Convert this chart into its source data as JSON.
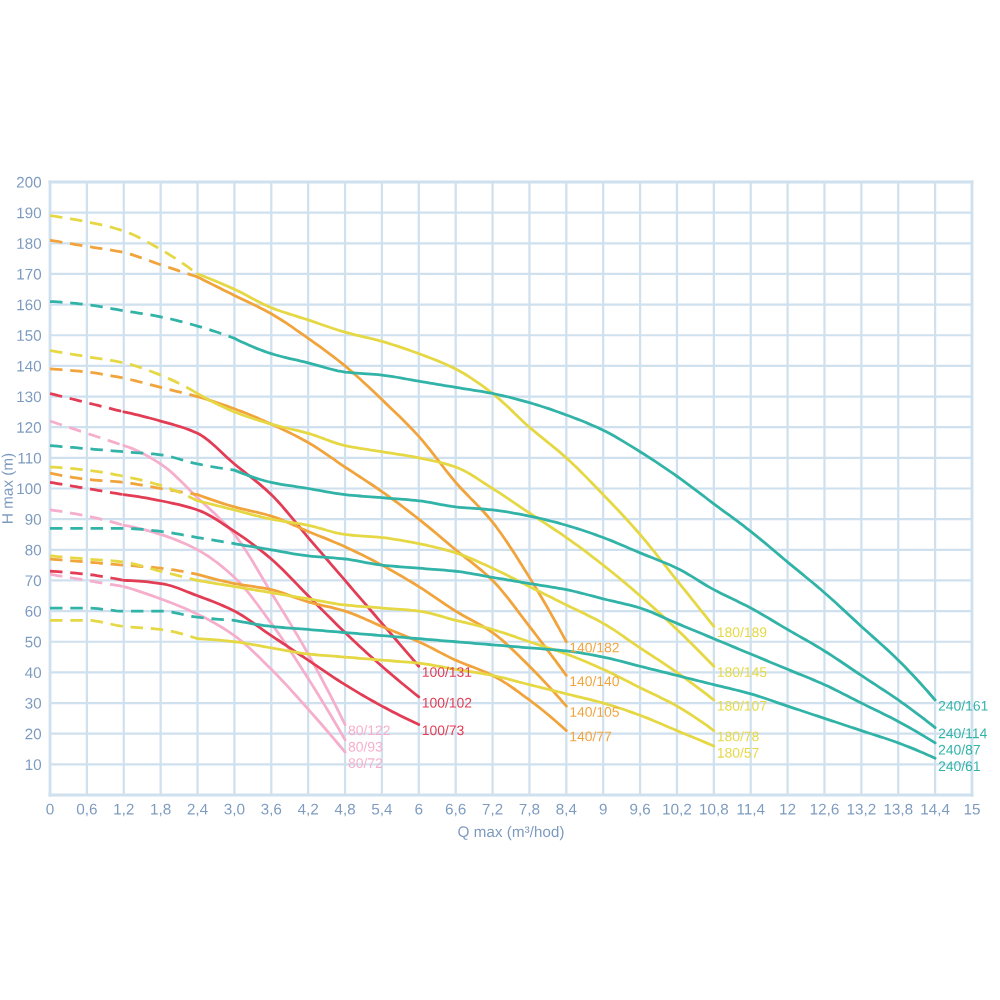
{
  "chart_data": {
    "type": "line",
    "xlabel": "Q max (m³/hod)",
    "ylabel": "H max (m)",
    "xlim": [
      0,
      15
    ],
    "ylim": [
      0,
      200
    ],
    "xticks": [
      0,
      {
        "value": 0.6,
        "label": "0,6"
      },
      {
        "value": 1.2,
        "label": "1,2"
      },
      {
        "value": 1.8,
        "label": "1,8"
      },
      {
        "value": 2.4,
        "label": "2,4"
      },
      {
        "value": 3,
        "label": "3,0"
      },
      {
        "value": 3.6,
        "label": "3,6"
      },
      {
        "value": 4.2,
        "label": "4,2"
      },
      {
        "value": 4.8,
        "label": "4,8"
      },
      {
        "value": 5.4,
        "label": "5,4"
      },
      6,
      {
        "value": 6.6,
        "label": "6,6"
      },
      {
        "value": 7.2,
        "label": "7,2"
      },
      {
        "value": 7.8,
        "label": "7,8"
      },
      {
        "value": 8.4,
        "label": "8,4"
      },
      9,
      {
        "value": 9.6,
        "label": "9,6"
      },
      {
        "value": 10.2,
        "label": "10,2"
      },
      {
        "value": 10.8,
        "label": "10,8"
      },
      {
        "value": 11.4,
        "label": "11,4"
      },
      12,
      {
        "value": 12.6,
        "label": "12,6"
      },
      {
        "value": 13.2,
        "label": "13,2"
      },
      {
        "value": 13.8,
        "label": "13,8"
      },
      {
        "value": 14.4,
        "label": "14,4"
      },
      15
    ],
    "yticks": [
      10,
      20,
      30,
      40,
      50,
      60,
      70,
      80,
      90,
      100,
      110,
      120,
      130,
      140,
      150,
      160,
      170,
      180,
      190,
      200
    ],
    "grid": true,
    "series": [
      {
        "color": "#f5aecb",
        "line_style": "dashed",
        "x": [
          0,
          0.6,
          1.2
        ],
        "values": [
          122,
          118,
          114
        ]
      },
      {
        "name": "80/122",
        "color": "#f5aecb",
        "x": [
          1.2,
          1.8,
          2.4,
          3.0,
          3.6,
          4.2,
          4.8
        ],
        "values": [
          114,
          108,
          97,
          85,
          66,
          46,
          23
        ]
      },
      {
        "color": "#f5aecb",
        "line_style": "dashed",
        "x": [
          0,
          0.6,
          1.2
        ],
        "values": [
          93,
          91,
          88
        ]
      },
      {
        "name": "80/93",
        "color": "#f5aecb",
        "x": [
          1.2,
          1.8,
          2.4,
          3.0,
          3.6,
          4.2,
          4.8
        ],
        "values": [
          88,
          85,
          80,
          71,
          56,
          38,
          18
        ]
      },
      {
        "color": "#f5aecb",
        "line_style": "dashed",
        "x": [
          0,
          0.6,
          1.2
        ],
        "values": [
          72,
          70,
          68
        ]
      },
      {
        "name": "80/72",
        "color": "#f5aecb",
        "x": [
          1.2,
          1.8,
          2.4,
          3.0,
          3.6,
          4.2,
          4.8
        ],
        "values": [
          68,
          64,
          59,
          52,
          41,
          28,
          14
        ]
      },
      {
        "color": "#e23d55",
        "line_style": "dashed",
        "x": [
          0,
          0.6,
          1.2
        ],
        "values": [
          131,
          128,
          125
        ]
      },
      {
        "name": "100/131",
        "color": "#e23d55",
        "x": [
          1.2,
          1.8,
          2.4,
          3.0,
          3.6,
          4.2,
          4.8,
          5.4,
          6.0
        ],
        "values": [
          125,
          122,
          118,
          108,
          98,
          84,
          70,
          56,
          42
        ]
      },
      {
        "color": "#e23d55",
        "line_style": "dashed",
        "x": [
          0,
          0.6,
          1.2
        ],
        "values": [
          102,
          100,
          98
        ]
      },
      {
        "name": "100/102",
        "color": "#e23d55",
        "x": [
          1.2,
          1.8,
          2.4,
          3.0,
          3.6,
          4.2,
          4.8,
          5.4,
          6.0
        ],
        "values": [
          98,
          96,
          93,
          86,
          77,
          65,
          53,
          42,
          32
        ]
      },
      {
        "color": "#e23d55",
        "line_style": "dashed",
        "x": [
          0,
          0.6,
          1.2
        ],
        "values": [
          73,
          72,
          70
        ]
      },
      {
        "name": "100/73",
        "color": "#e23d55",
        "x": [
          1.2,
          1.8,
          2.4,
          3.0,
          3.6,
          4.2,
          4.8,
          5.4,
          6.0
        ],
        "values": [
          70,
          69,
          65,
          60,
          52,
          44,
          36,
          29,
          23
        ]
      },
      {
        "color": "#f2a43c",
        "line_style": "dashed",
        "x": [
          0,
          0.6,
          1.2,
          1.8,
          2.4
        ],
        "values": [
          181,
          179,
          177,
          173,
          169
        ]
      },
      {
        "name": "140/182",
        "color": "#f2a43c",
        "x": [
          2.4,
          3.0,
          3.6,
          4.2,
          4.8,
          5.4,
          6.0,
          6.6,
          7.2,
          7.8,
          8.4
        ],
        "values": [
          169,
          163,
          157,
          149,
          140,
          129,
          117,
          102,
          89,
          71,
          50
        ]
      },
      {
        "color": "#f2a43c",
        "line_style": "dashed",
        "x": [
          0,
          0.6,
          1.2,
          1.8,
          2.4
        ],
        "values": [
          139,
          138,
          136,
          133,
          130
        ]
      },
      {
        "name": "140/140",
        "color": "#f2a43c",
        "x": [
          2.4,
          3.0,
          3.6,
          4.2,
          4.8,
          5.4,
          6.0,
          6.6,
          7.2,
          7.8,
          8.4
        ],
        "values": [
          130,
          126,
          121,
          115,
          107,
          99,
          90,
          80,
          70,
          55,
          39
        ]
      },
      {
        "color": "#f2a43c",
        "line_style": "dashed",
        "x": [
          0,
          0.6,
          1.2,
          1.8,
          2.4
        ],
        "values": [
          105,
          103,
          102,
          100,
          98
        ]
      },
      {
        "name": "140/105",
        "color": "#f2a43c",
        "x": [
          2.4,
          3.0,
          3.6,
          4.2,
          4.8,
          5.4,
          6.0,
          6.6,
          7.2,
          7.8,
          8.4
        ],
        "values": [
          98,
          94,
          91,
          86,
          81,
          75,
          68,
          60,
          53,
          42,
          29
        ]
      },
      {
        "color": "#f2a43c",
        "line_style": "dashed",
        "x": [
          0,
          0.6,
          1.2,
          1.8,
          2.4
        ],
        "values": [
          77,
          76,
          75,
          74,
          72
        ]
      },
      {
        "name": "140/77",
        "color": "#f2a43c",
        "x": [
          2.4,
          3.0,
          3.6,
          4.2,
          4.8,
          5.4,
          6.0,
          6.6,
          7.2,
          7.8,
          8.4
        ],
        "values": [
          72,
          69,
          67,
          63,
          60,
          55,
          50,
          44,
          39,
          31,
          21
        ]
      },
      {
        "color": "#e6d844",
        "line_style": "dashed",
        "x": [
          0,
          0.6,
          1.2,
          1.8,
          2.4
        ],
        "values": [
          189,
          187,
          184,
          178,
          170
        ]
      },
      {
        "name": "180/189",
        "color": "#e6d844",
        "x": [
          2.4,
          3.0,
          3.6,
          4.2,
          4.8,
          5.4,
          6.0,
          6.6,
          7.2,
          7.8,
          8.4,
          9.0,
          9.6,
          10.2,
          10.8
        ],
        "values": [
          170,
          165,
          159,
          155,
          151,
          148,
          144,
          139,
          131,
          120,
          110,
          98,
          85,
          70,
          55
        ]
      },
      {
        "color": "#e6d844",
        "line_style": "dashed",
        "x": [
          0,
          0.6,
          1.2,
          1.8,
          2.4
        ],
        "values": [
          145,
          143,
          141,
          137,
          131
        ]
      },
      {
        "name": "180/145",
        "color": "#e6d844",
        "x": [
          2.4,
          3.0,
          3.6,
          4.2,
          4.8,
          5.4,
          6.0,
          6.6,
          7.2,
          7.8,
          8.4,
          9.0,
          9.6,
          10.2,
          10.8
        ],
        "values": [
          131,
          125,
          121,
          118,
          114,
          112,
          110,
          107,
          100,
          92,
          84,
          75,
          65,
          54,
          42
        ]
      },
      {
        "color": "#e6d844",
        "line_style": "dashed",
        "x": [
          0,
          0.6,
          1.2,
          1.8,
          2.4
        ],
        "values": [
          107,
          106,
          104,
          101,
          96
        ]
      },
      {
        "name": "180/107",
        "color": "#e6d844",
        "x": [
          2.4,
          3.0,
          3.6,
          4.2,
          4.8,
          5.4,
          6.0,
          6.6,
          7.2,
          7.8,
          8.4,
          9.0,
          9.6,
          10.2,
          10.8
        ],
        "values": [
          96,
          93,
          90,
          88,
          85,
          84,
          82,
          79,
          74,
          68,
          62,
          56,
          48,
          40,
          31
        ]
      },
      {
        "color": "#e6d844",
        "line_style": "dashed",
        "x": [
          0,
          0.6,
          1.2,
          1.8,
          2.4
        ],
        "values": [
          78,
          77,
          76,
          73,
          70
        ]
      },
      {
        "name": "180/78",
        "color": "#e6d844",
        "x": [
          2.4,
          3.0,
          3.6,
          4.2,
          4.8,
          5.4,
          6.0,
          6.6,
          7.2,
          7.8,
          8.4,
          9.0,
          9.6,
          10.2,
          10.8
        ],
        "values": [
          70,
          68,
          66,
          64,
          62,
          61,
          60,
          57,
          54,
          50,
          46,
          41,
          35,
          29,
          21
        ]
      },
      {
        "color": "#e6d844",
        "line_style": "dashed",
        "x": [
          0,
          0.6,
          1.2,
          1.8,
          2.4
        ],
        "values": [
          57,
          57,
          55,
          54,
          51
        ]
      },
      {
        "name": "180/57",
        "color": "#e6d844",
        "x": [
          2.4,
          3.0,
          3.6,
          4.2,
          4.8,
          5.4,
          6.0,
          6.6,
          7.2,
          7.8,
          8.4,
          9.0,
          9.6,
          10.2,
          10.8
        ],
        "values": [
          51,
          50,
          48,
          46,
          45,
          44,
          43,
          41,
          39,
          36,
          33,
          30,
          26,
          21,
          16
        ]
      },
      {
        "color": "#31b3a8",
        "line_style": "dashed",
        "x": [
          0,
          0.6,
          1.2,
          1.8,
          2.4,
          3.0
        ],
        "values": [
          161,
          160,
          158,
          156,
          153,
          149
        ]
      },
      {
        "name": "240/161",
        "color": "#31b3a8",
        "x": [
          3.0,
          3.6,
          4.2,
          4.8,
          5.4,
          6.0,
          6.6,
          7.2,
          7.8,
          8.4,
          9.0,
          9.6,
          10.2,
          10.8,
          11.4,
          12.0,
          12.6,
          13.2,
          13.8,
          14.4
        ],
        "values": [
          149,
          144,
          141,
          138,
          137,
          135,
          133,
          131,
          128,
          124,
          119,
          112,
          104,
          95,
          86,
          76,
          66,
          55,
          44,
          31
        ]
      },
      {
        "color": "#31b3a8",
        "line_style": "dashed",
        "x": [
          0,
          0.6,
          1.2,
          1.8,
          2.4,
          3.0
        ],
        "values": [
          114,
          113,
          112,
          111,
          108,
          106
        ]
      },
      {
        "name": "240/114",
        "color": "#31b3a8",
        "x": [
          3.0,
          3.6,
          4.2,
          4.8,
          5.4,
          6.0,
          6.6,
          7.2,
          7.8,
          8.4,
          9.0,
          9.6,
          10.2,
          10.8,
          11.4,
          12.0,
          12.6,
          13.2,
          13.8,
          14.4
        ],
        "values": [
          106,
          102,
          100,
          98,
          97,
          96,
          94,
          93,
          91,
          88,
          84,
          79,
          74,
          67,
          61,
          54,
          47,
          39,
          31,
          22
        ]
      },
      {
        "color": "#31b3a8",
        "line_style": "dashed",
        "x": [
          0,
          0.6,
          1.2,
          1.8,
          2.4,
          3.0
        ],
        "values": [
          87,
          87,
          87,
          86,
          84,
          82
        ]
      },
      {
        "name": "240/87",
        "color": "#31b3a8",
        "x": [
          3.0,
          3.6,
          4.2,
          4.8,
          5.4,
          6.0,
          6.6,
          7.2,
          7.8,
          8.4,
          9.0,
          9.6,
          10.2,
          10.8,
          11.4,
          12.0,
          12.6,
          13.2,
          13.8,
          14.4
        ],
        "values": [
          82,
          80,
          78,
          77,
          75,
          74,
          73,
          71,
          69,
          67,
          64,
          61,
          56,
          51,
          46,
          41,
          36,
          30,
          24,
          17
        ]
      },
      {
        "color": "#31b3a8",
        "line_style": "dashed",
        "x": [
          0,
          0.6,
          1.2,
          1.8,
          2.4,
          3.0
        ],
        "values": [
          61,
          61,
          60,
          60,
          58,
          57
        ]
      },
      {
        "name": "240/61",
        "color": "#31b3a8",
        "x": [
          3.0,
          3.6,
          4.2,
          4.8,
          5.4,
          6.0,
          6.6,
          7.2,
          7.8,
          8.4,
          9.0,
          9.6,
          10.2,
          10.8,
          11.4,
          12.0,
          12.6,
          13.2,
          13.8,
          14.4
        ],
        "values": [
          57,
          55,
          54,
          53,
          52,
          51,
          50,
          49,
          48,
          47,
          45,
          42,
          39,
          36,
          33,
          29,
          25,
          21,
          17,
          12
        ]
      }
    ]
  }
}
